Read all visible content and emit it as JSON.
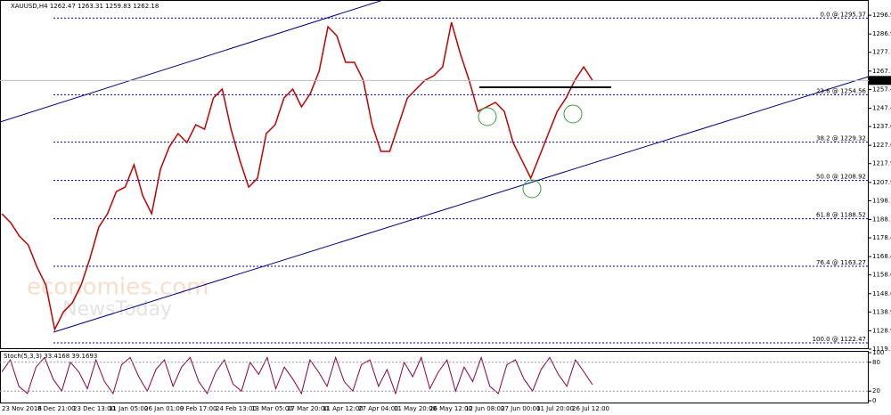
{
  "chart_data": [
    {
      "type": "line",
      "title": "XAUUSD,H4  1262.47 1263.31 1259.83 1262.18",
      "color": "#c00000",
      "values": [
        1191.2,
        1186.5,
        1179.3,
        1174.6,
        1162.7,
        1153.3,
        1129.6,
        1139.0,
        1143.8,
        1153.3,
        1167.5,
        1184.1,
        1191.2,
        1203.0,
        1205.4,
        1217.3,
        1200.7,
        1191.2,
        1214.9,
        1226.8,
        1233.9,
        1229.1,
        1238.6,
        1236.2,
        1252.8,
        1257.6,
        1236.2,
        1219.6,
        1205.4,
        1210.2,
        1233.9,
        1238.6,
        1252.8,
        1257.6,
        1248.1,
        1255.2,
        1267.1,
        1290.8,
        1286.0,
        1271.8,
        1271.8,
        1262.3,
        1238.6,
        1224.4,
        1224.4,
        1238.6,
        1252.8,
        1257.6,
        1262.3,
        1264.7,
        1269.4,
        1293.1,
        1276.5,
        1262.3,
        1245.7,
        1248.1,
        1250.5,
        1245.7,
        1229.1,
        1219.6,
        1210.2,
        1222.0,
        1233.9,
        1245.7,
        1252.8,
        1262.3,
        1269.4,
        1262.18
      ],
      "last_price": 1262.18,
      "ylim": [
        1119.15,
        1305
      ],
      "yticks": [
        {
          "value": 1296.9,
          "label": "1296.90"
        },
        {
          "value": 1286.9,
          "label": "1286.90"
        },
        {
          "value": 1277.15,
          "label": "1277.15"
        },
        {
          "value": 1267.15,
          "label": "1267.15"
        },
        {
          "value": 1257.4,
          "label": "1257.40"
        },
        {
          "value": 1247.4,
          "label": "1247.40"
        },
        {
          "value": 1237.65,
          "label": "1237.65"
        },
        {
          "value": 1227.65,
          "label": "1227.65"
        },
        {
          "value": 1217.9,
          "label": "1217.90"
        },
        {
          "value": 1207.9,
          "label": "1207.90"
        },
        {
          "value": 1198.15,
          "label": "1198.15"
        },
        {
          "value": 1188.15,
          "label": "1188.15"
        },
        {
          "value": 1178.4,
          "label": "1178.40"
        },
        {
          "value": 1168.4,
          "label": "1168.40"
        },
        {
          "value": 1158.65,
          "label": "1158.65"
        },
        {
          "value": 1148.65,
          "label": "1148.65"
        },
        {
          "value": 1138.9,
          "label": "1138.90"
        },
        {
          "value": 1128.9,
          "label": "1128.90"
        },
        {
          "value": 1119.15,
          "label": "1119.15"
        }
      ],
      "fib_levels": [
        {
          "value": 1295.37,
          "label": "0.0 @ 1295.37"
        },
        {
          "value": 1254.56,
          "label": "23.6 @ 1254.56"
        },
        {
          "value": 1229.32,
          "label": "38.2 @ 1229.32"
        },
        {
          "value": 1208.92,
          "label": "50.0 @ 1208.92"
        },
        {
          "value": 1188.52,
          "label": "61.8 @ 1188.52"
        },
        {
          "value": 1163.27,
          "label": "76.4 @ 1163.27"
        },
        {
          "value": 1122.47,
          "label": "100.0 @ 1122.47"
        }
      ],
      "x_labels": [
        "23 Nov 2016",
        "8 Dec 21:00",
        "23 Dec 13:00",
        "11 Jan 05:00",
        "26 Jan 01:00",
        "9 Feb 17:00",
        "24 Feb 13:00",
        "13 Mar 05:00",
        "27 Mar 20:00",
        "11 Apr 12:00",
        "27 Apr 04:00",
        "11 May 20:00",
        "26 May 12:00",
        "12 Jun 08:00",
        "27 Jun 00:00",
        "11 Jul 20:00",
        "26 Jul 12:00"
      ]
    },
    {
      "type": "line",
      "title": "Stoch(5,3,3) 33.4168 39.1693",
      "color": "#8b0045",
      "values": [
        60,
        85,
        30,
        15,
        70,
        90,
        45,
        20,
        80,
        60,
        25,
        85,
        40,
        15,
        75,
        90,
        50,
        20,
        65,
        85,
        30,
        70,
        90,
        40,
        15,
        60,
        85,
        35,
        20,
        80,
        55,
        90,
        25,
        70,
        45,
        15,
        85,
        60,
        30,
        90,
        40,
        20,
        75,
        85,
        30,
        65,
        15,
        80,
        50,
        90,
        25,
        60,
        85,
        20,
        70,
        40,
        90,
        30,
        15,
        75,
        85,
        45,
        20,
        65,
        90,
        55,
        30,
        85,
        60,
        33.4
      ],
      "ylim": [
        0,
        100
      ],
      "yticks": [
        100,
        80,
        20,
        0
      ]
    }
  ],
  "watermark": [
    "economies.com",
    "NewsToday"
  ]
}
